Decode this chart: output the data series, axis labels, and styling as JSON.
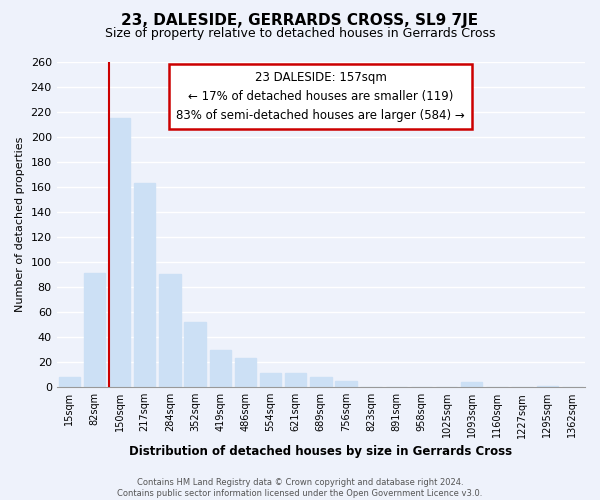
{
  "title": "23, DALESIDE, GERRARDS CROSS, SL9 7JE",
  "subtitle": "Size of property relative to detached houses in Gerrards Cross",
  "xlabel": "Distribution of detached houses by size in Gerrards Cross",
  "ylabel": "Number of detached properties",
  "bar_labels": [
    "15sqm",
    "82sqm",
    "150sqm",
    "217sqm",
    "284sqm",
    "352sqm",
    "419sqm",
    "486sqm",
    "554sqm",
    "621sqm",
    "689sqm",
    "756sqm",
    "823sqm",
    "891sqm",
    "958sqm",
    "1025sqm",
    "1093sqm",
    "1160sqm",
    "1227sqm",
    "1295sqm",
    "1362sqm"
  ],
  "bar_values": [
    8,
    91,
    215,
    163,
    90,
    52,
    30,
    23,
    11,
    11,
    8,
    5,
    0,
    0,
    0,
    0,
    4,
    0,
    0,
    1,
    0
  ],
  "bar_color": "#cce0f5",
  "vline_color": "#cc0000",
  "vline_index": 2,
  "ylim": [
    0,
    260
  ],
  "yticks": [
    0,
    20,
    40,
    60,
    80,
    100,
    120,
    140,
    160,
    180,
    200,
    220,
    240,
    260
  ],
  "annotation_title": "23 DALESIDE: 157sqm",
  "annotation_line1": "← 17% of detached houses are smaller (119)",
  "annotation_line2": "83% of semi-detached houses are larger (584) →",
  "annotation_box_color": "#ffffff",
  "annotation_box_edge": "#cc0000",
  "footer1": "Contains HM Land Registry data © Crown copyright and database right 2024.",
  "footer2": "Contains public sector information licensed under the Open Government Licence v3.0.",
  "bg_color": "#eef2fb",
  "plot_bg_color": "#eef2fb",
  "grid_color": "#ffffff",
  "title_fontsize": 11,
  "subtitle_fontsize": 9
}
